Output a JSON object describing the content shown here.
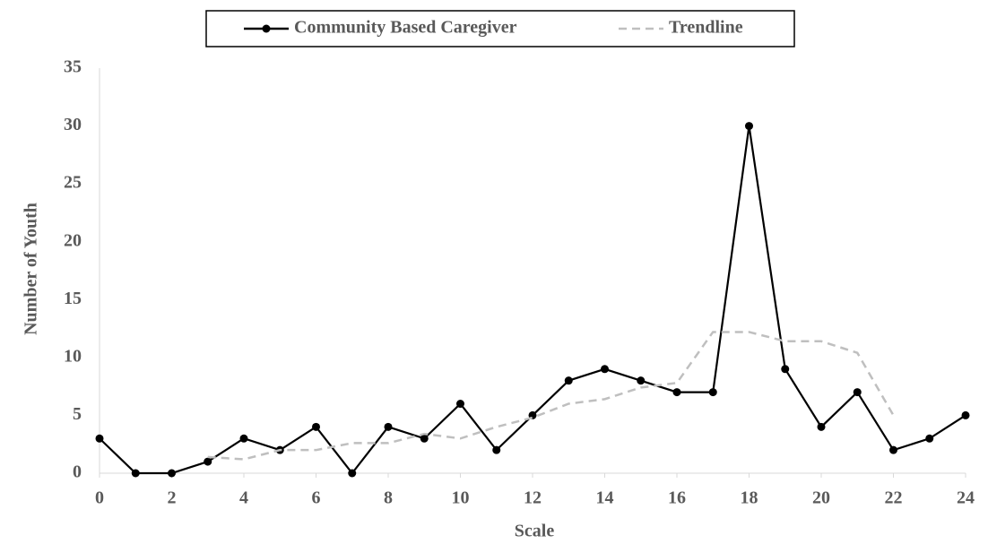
{
  "chart_data": {
    "type": "line",
    "x_label": "Scale",
    "y_label": "Number of Youth",
    "x": [
      0,
      1,
      2,
      3,
      4,
      5,
      6,
      7,
      8,
      9,
      10,
      11,
      12,
      13,
      14,
      15,
      16,
      17,
      18,
      19,
      20,
      21,
      22,
      23,
      24
    ],
    "series": [
      {
        "name": "Community Based Caregiver",
        "color": "#000000",
        "style": "solid",
        "markers": true,
        "values": [
          3,
          0,
          0,
          1,
          3,
          2,
          4,
          0,
          4,
          3,
          6,
          2,
          5,
          8,
          9,
          8,
          7,
          7,
          30,
          9,
          4,
          7,
          2,
          3,
          5
        ]
      },
      {
        "name": "Trendline",
        "color": "#bfbfbf",
        "style": "dashed",
        "markers": false,
        "values": [
          null,
          null,
          null,
          1.4,
          1.2,
          2,
          2,
          2.6,
          2.6,
          3.4,
          3,
          4,
          4.8,
          6,
          6.4,
          7.4,
          7.8,
          12.2,
          12.2,
          11.4,
          11.4,
          10.4,
          5,
          null,
          null
        ]
      }
    ],
    "xlim": [
      0,
      24
    ],
    "xticks": [
      0,
      2,
      4,
      6,
      8,
      10,
      12,
      14,
      16,
      18,
      20,
      22,
      24
    ],
    "ylim": [
      0,
      35
    ],
    "yticks": [
      0,
      5,
      10,
      15,
      20,
      25,
      30,
      35
    ],
    "legend": "top",
    "grid": false
  }
}
